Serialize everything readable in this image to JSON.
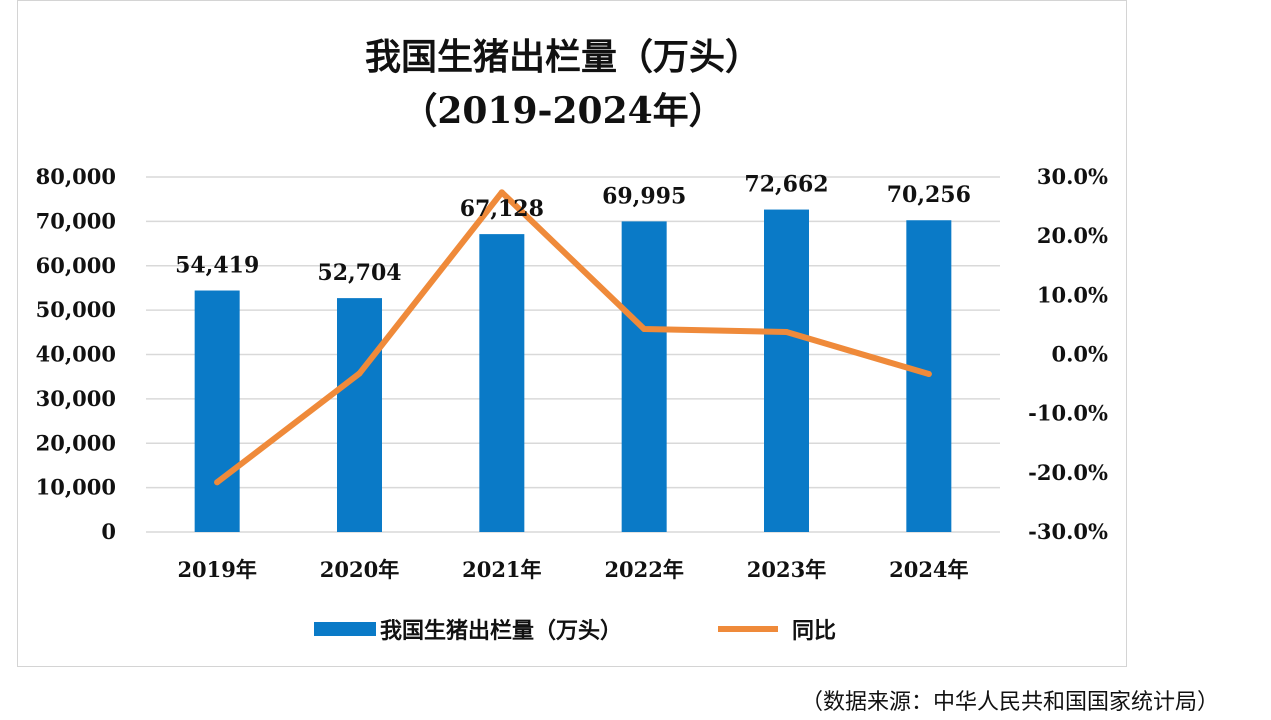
{
  "chart_data": {
    "type": "bar+line",
    "title": "我国生猪出栏量（万头）",
    "subtitle": "（2019-2024年）",
    "categories": [
      "2019年",
      "2020年",
      "2021年",
      "2022年",
      "2023年",
      "2024年"
    ],
    "series": [
      {
        "name": "我国生猪出栏量（万头）",
        "kind": "bar",
        "axis": "left",
        "values": [
          54419,
          52704,
          67128,
          69995,
          72662,
          70256
        ],
        "labels": [
          "54,419",
          "52,704",
          "67,128",
          "69,995",
          "72,662",
          "70,256"
        ]
      },
      {
        "name": "同比",
        "kind": "line",
        "axis": "right",
        "values": [
          -21.6,
          -3.2,
          27.4,
          4.3,
          3.8,
          -3.3
        ]
      }
    ],
    "left_axis": {
      "ylim": [
        0,
        80000
      ],
      "ticks": [
        "0",
        "10,000",
        "20,000",
        "30,000",
        "40,000",
        "50,000",
        "60,000",
        "70,000",
        "80,000"
      ]
    },
    "right_axis": {
      "ylim": [
        -30,
        30
      ],
      "ticks": [
        "-30.0%",
        "-20.0%",
        "-10.0%",
        "0.0%",
        "10.0%",
        "20.0%",
        "30.0%"
      ]
    },
    "grid": true,
    "legend_position": "bottom"
  },
  "colors": {
    "bar": "#0a7ac7",
    "line": "#ef8a3a",
    "grid": "#d9d9d9"
  },
  "source_note": "（数据来源：中华人民共和国国家统计局）"
}
